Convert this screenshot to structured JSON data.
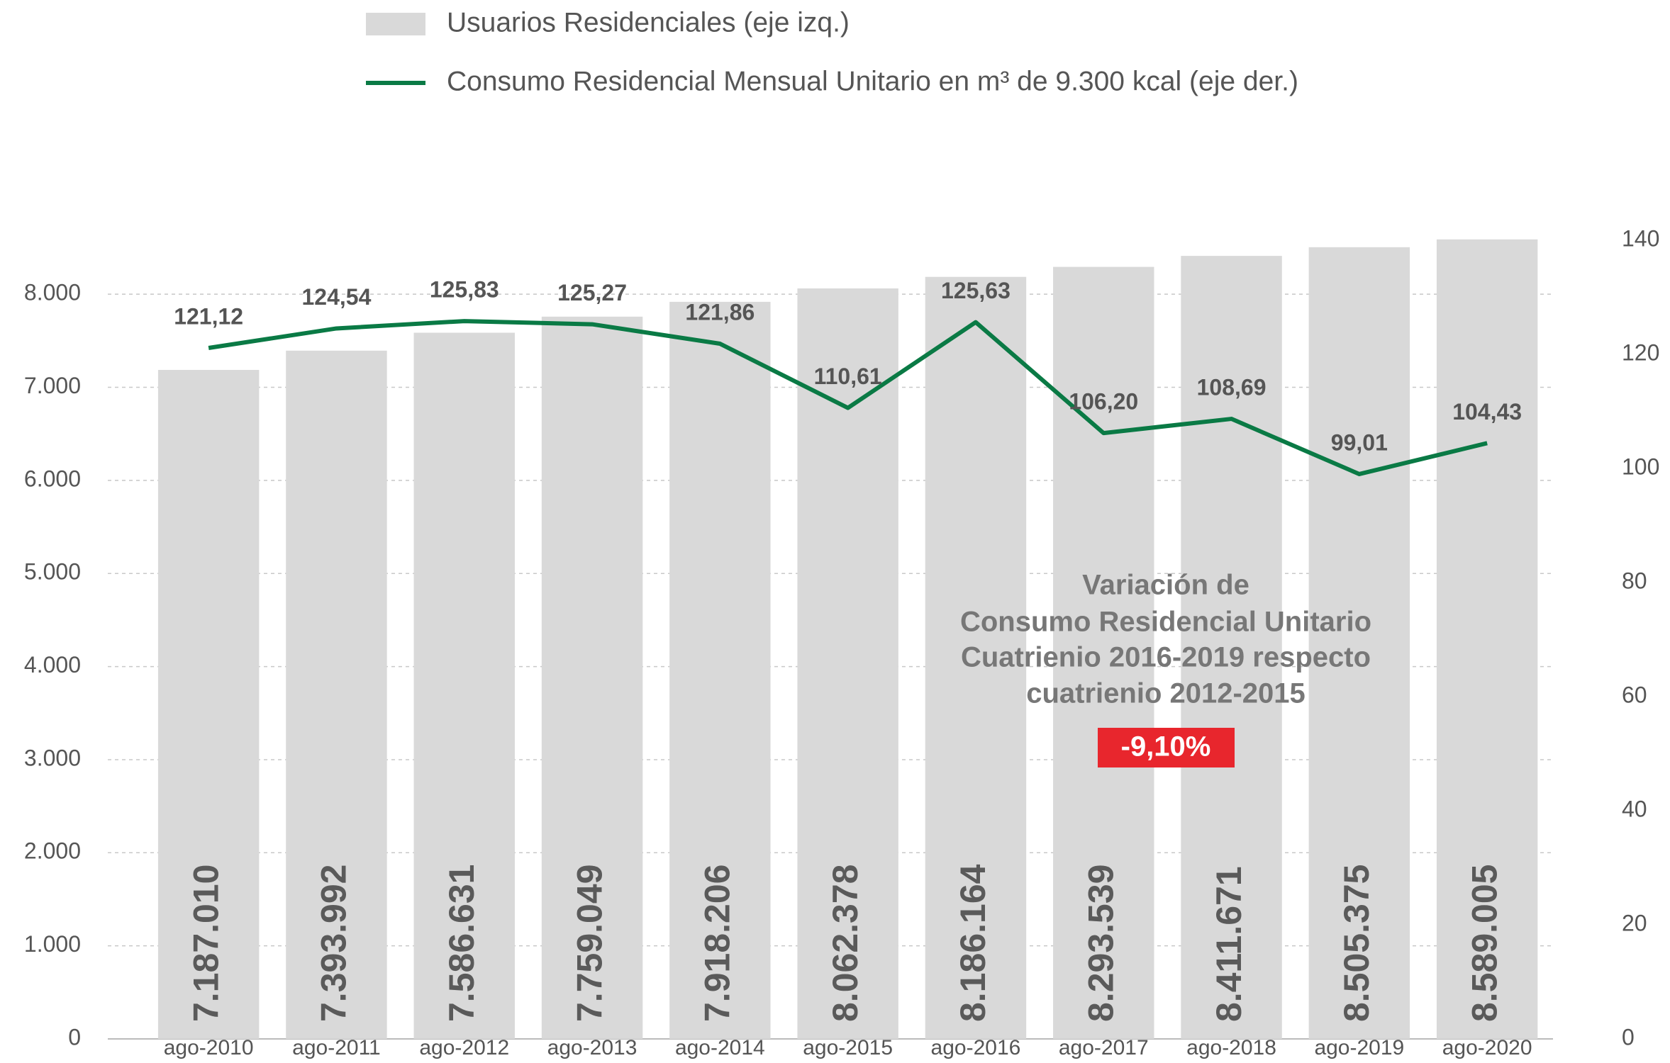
{
  "chart_data": {
    "type": "bar_line",
    "categories": [
      "ago-2010",
      "ago-2011",
      "ago-2012",
      "ago-2013",
      "ago-2014",
      "ago-2015",
      "ago-2016",
      "ago-2017",
      "ago-2018",
      "ago-2019",
      "ago-2020"
    ],
    "series": [
      {
        "name": "Usuarios Residenciales (eje izq.)",
        "type": "bar",
        "color": "#d9d9d9",
        "values": [
          7187.01,
          7393.992,
          7586.631,
          7759.049,
          7918.206,
          8062.378,
          8186.164,
          8293.539,
          8411.671,
          8505.375,
          8589.005
        ],
        "value_labels": [
          "7.187.010",
          "7.393.992",
          "7.586.631",
          "7.759.049",
          "7.918.206",
          "8.062.378",
          "8.186.164",
          "8.293.539",
          "8.411.671",
          "8.505.375",
          "8.589.005"
        ]
      },
      {
        "name": "Consumo Residencial Mensual Unitario en m³ de 9.300 kcal (eje der.)",
        "type": "line",
        "axis": "y2",
        "color": "#0a7a45",
        "values": [
          121.12,
          124.54,
          125.83,
          125.27,
          121.86,
          110.61,
          125.63,
          106.2,
          108.69,
          99.01,
          104.43
        ],
        "value_labels": [
          "121,12",
          "124,54",
          "125,83",
          "125,27",
          "121,86",
          "110,61",
          "125,63",
          "106,20",
          "108,69",
          "99,01",
          "104,43"
        ]
      }
    ],
    "ylim": [
      0,
      8580
    ],
    "yticks": [
      0,
      {
        "value": 1000,
        "label": "1.000"
      },
      {
        "value": 2000,
        "label": "2.000"
      },
      {
        "value": 3000,
        "label": "3.000"
      },
      {
        "value": 4000,
        "label": "4.000"
      },
      {
        "value": 5000,
        "label": "5.000"
      },
      {
        "value": 6000,
        "label": "6.000"
      },
      {
        "value": 7000,
        "label": "7.000"
      },
      {
        "value": 8000,
        "label": "8.000"
      }
    ],
    "y2lim": [
      0,
      140
    ],
    "y2ticks": [
      0,
      20,
      40,
      60,
      80,
      100,
      120,
      140
    ],
    "grid": true,
    "annotation": {
      "lines": [
        "Variación de",
        "Consumo Residencial Unitario",
        "Cuatrienio 2016-2019 respecto",
        "cuatrienio 2012-2015"
      ],
      "badge": "-9,10%"
    }
  }
}
